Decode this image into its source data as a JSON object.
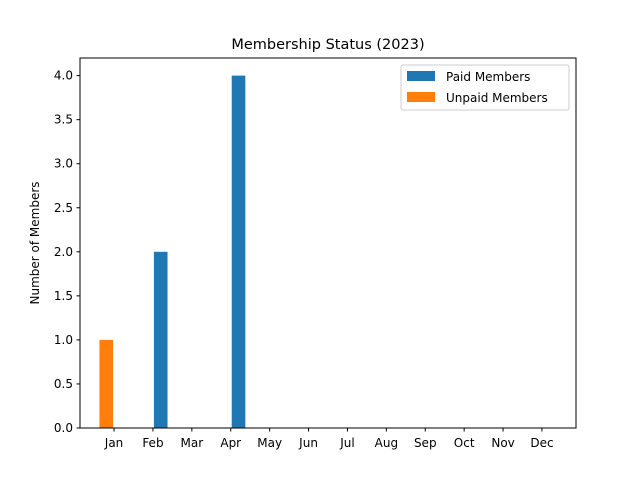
{
  "chart_data": {
    "type": "bar",
    "title": "Membership Status (2023)",
    "xlabel": "",
    "ylabel": "Number of Members",
    "categories": [
      "Jan",
      "Feb",
      "Mar",
      "Apr",
      "May",
      "Jun",
      "Jul",
      "Aug",
      "Sep",
      "Oct",
      "Nov",
      "Dec"
    ],
    "series": [
      {
        "name": "Paid Members",
        "color": "#1f77b4",
        "values": [
          0,
          2,
          0,
          4,
          0,
          0,
          0,
          0,
          0,
          0,
          0,
          0
        ]
      },
      {
        "name": "Unpaid Members",
        "color": "#ff7f0e",
        "values": [
          1,
          0,
          0,
          0,
          0,
          0,
          0,
          0,
          0,
          0,
          0,
          0
        ]
      }
    ],
    "ylim": [
      0,
      4.2
    ],
    "yticks": [
      "0.0",
      "0.5",
      "1.0",
      "1.5",
      "2.0",
      "2.5",
      "3.0",
      "3.5",
      "4.0"
    ],
    "grid": false,
    "legend_position": "top-right"
  }
}
